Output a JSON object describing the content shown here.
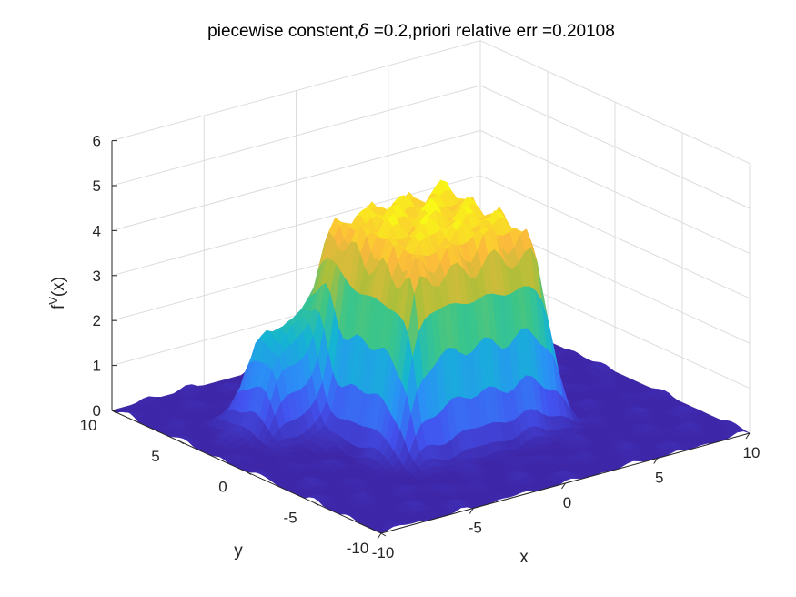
{
  "chart_data": {
    "type": "surface",
    "title": "piecewise constent,δ =0.2,priori relative err =0.20108",
    "title_parts": [
      "piecewise constent,",
      "δ",
      " =0.2,priori relative err =0.20108"
    ],
    "xlabel": "x",
    "ylabel": "y",
    "zlabel_main": "f",
    "zlabel_sup": "V",
    "zlabel_tail": "(x)",
    "xlim": [
      -10,
      10
    ],
    "ylim": [
      -10,
      10
    ],
    "zlim": [
      0,
      6
    ],
    "xticks": [
      -10,
      -5,
      0,
      5,
      10
    ],
    "yticks": [
      -10,
      -5,
      0,
      5,
      10
    ],
    "zticks": [
      0,
      1,
      2,
      3,
      4,
      5,
      6
    ],
    "xtick_labels": [
      "-10",
      "-5",
      "0",
      "5",
      "10"
    ],
    "ytick_labels": [
      "-10",
      "-5",
      "0",
      "5",
      "10"
    ],
    "ztick_labels": [
      "0",
      "1",
      "2",
      "3",
      "4",
      "5",
      "6"
    ],
    "grid": true,
    "colormap": "parula",
    "colormap_stops": [
      "#3e26a8",
      "#4353f0",
      "#2b91f7",
      "#15b5d3",
      "#3cc68a",
      "#b0bf39",
      "#fcb93d",
      "#f9fb15"
    ],
    "features": [
      {
        "shape": "plateau",
        "x_range": [
          -4,
          4
        ],
        "y_range": [
          -4,
          4
        ],
        "height": 4.5,
        "ripple": 0.35
      },
      {
        "shape": "plateau",
        "x_range": [
          -7,
          -4
        ],
        "y_range": [
          2,
          5
        ],
        "height": 2.3,
        "ripple": 0.15
      }
    ],
    "background_level": 0.0,
    "noise_amplitude": 0.12
  }
}
